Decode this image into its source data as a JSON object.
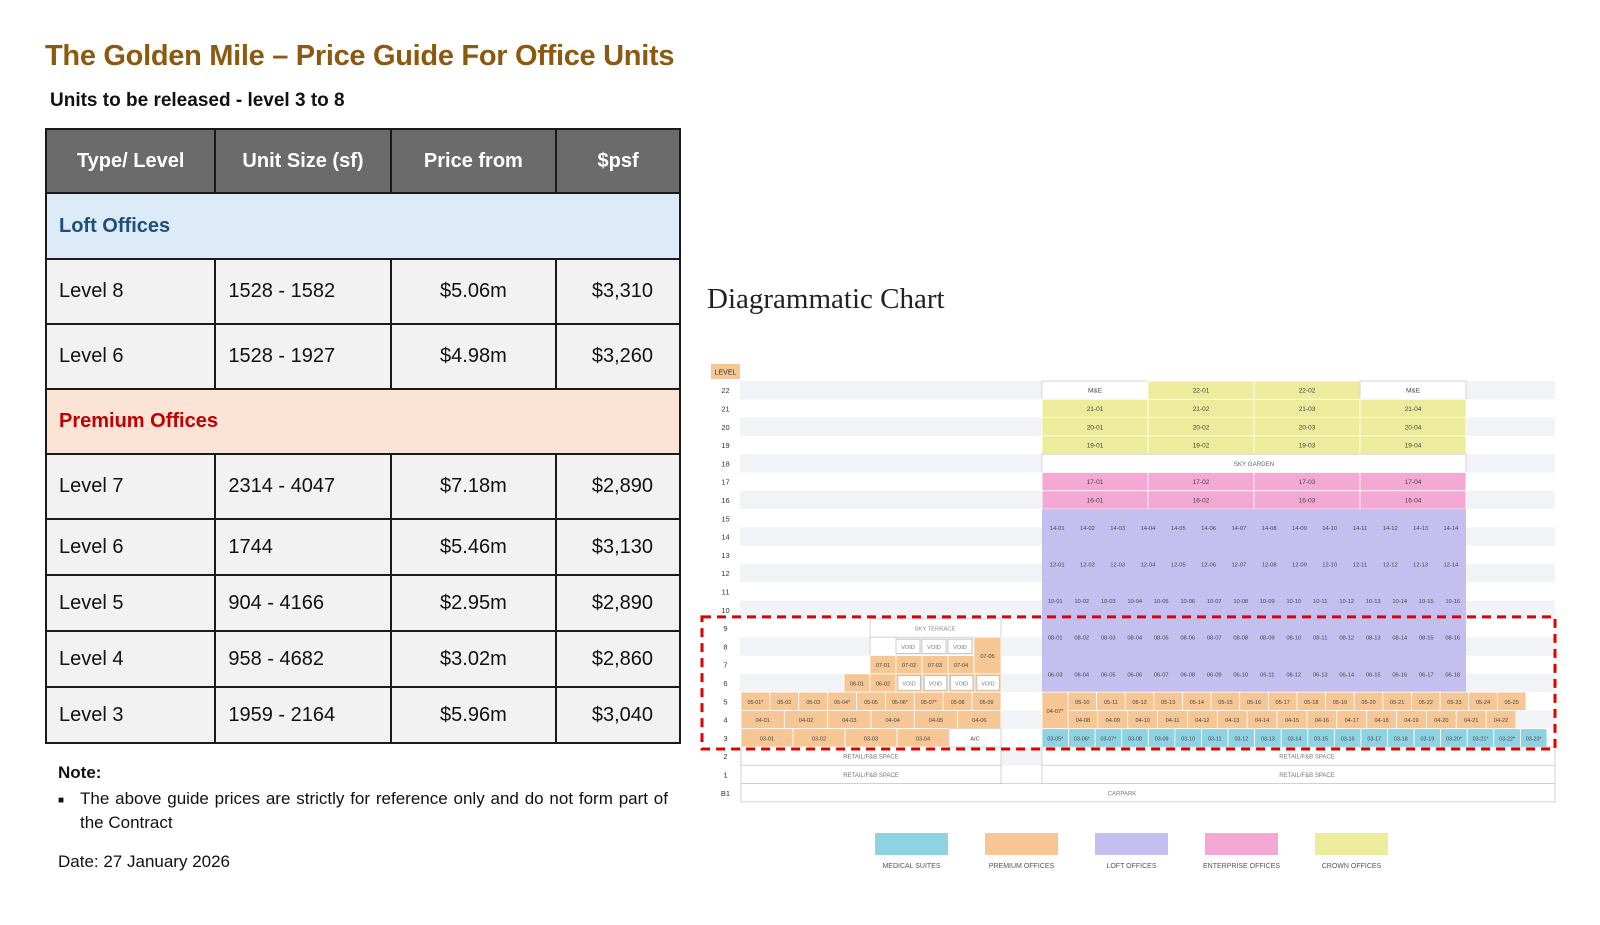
{
  "header": {
    "title": "The Golden Mile – Price Guide For Office Units",
    "subtitle": "Units to be released - level 3 to 8"
  },
  "price_table": {
    "columns": [
      "Type/ Level",
      "Unit Size (sf)",
      "Price from",
      "$psf"
    ],
    "sections": [
      {
        "name": "Loft Offices",
        "rows": [
          [
            "Level 8",
            "1528 - 1582",
            "$5.06m",
            "$3,310"
          ],
          [
            "Level 6",
            "1528 - 1927",
            "$4.98m",
            "$3,260"
          ]
        ]
      },
      {
        "name": "Premium Offices",
        "rows": [
          [
            "Level 7",
            "2314 - 4047",
            "$7.18m",
            "$2,890"
          ],
          [
            "Level 6",
            "1744",
            "$5.46m",
            "$3,130"
          ],
          [
            "Level 5",
            "904 - 4166",
            "$2.95m",
            "$2,890"
          ],
          [
            "Level 4",
            "958 - 4682",
            "$3.02m",
            "$2,860"
          ],
          [
            "Level 3",
            "1959 - 2164",
            "$5.96m",
            "$3,040"
          ]
        ]
      }
    ]
  },
  "note": {
    "heading": "Note:",
    "bullet": "The above guide prices are strictly for reference only and do not form part of the Contract",
    "date": "Date: 27 January 2026"
  },
  "diagram": {
    "title": "Diagrammatic Chart",
    "level_header": "LEVEL",
    "levels": [
      "22",
      "21",
      "20",
      "19",
      "18",
      "17",
      "16",
      "15",
      "14",
      "13",
      "12",
      "11",
      "10",
      "9",
      "8",
      "7",
      "6",
      "5",
      "4",
      "3",
      "2",
      "1",
      "B1"
    ],
    "labels": {
      "sky_garden": "SKY GARDEN",
      "sky_terrace": "SKY TERRACE",
      "retail": "RETAIL/F&B SPACE",
      "carpark": "CARPARK",
      "me": "M&E",
      "void": "VOID",
      "ac": "A/C"
    },
    "crown_units": {
      "22": [
        "M&E",
        "22-01",
        "22-02",
        "M&E"
      ],
      "21": [
        "21-01",
        "21-02",
        "21-03",
        "21-04"
      ],
      "20": [
        "20-01",
        "20-02",
        "20-03",
        "20-04"
      ],
      "19": [
        "19-01",
        "19-02",
        "19-03",
        "19-04"
      ]
    },
    "enterprise_units": {
      "17": [
        "17-01",
        "17-02",
        "17-03",
        "17-04"
      ],
      "16": [
        "16-01",
        "16-02",
        "16-03",
        "16-04"
      ]
    },
    "loft_rows": {
      "15": [
        "14-01",
        "14-02",
        "14-03",
        "14-04",
        "14-05",
        "14-06",
        "14-07",
        "14-08",
        "14-09",
        "14-10",
        "14-11",
        "14-12",
        "14-13",
        "14-14"
      ],
      "13": [
        "12-01",
        "12-02",
        "12-03",
        "12-04",
        "12-05",
        "12-06",
        "12-07",
        "12-08",
        "12-09",
        "12-10",
        "12-11",
        "12-12",
        "12-13",
        "12-14"
      ],
      "11": [
        "10-01",
        "10-02",
        "10-03",
        "10-04",
        "10-05",
        "10-06",
        "10-07",
        "10-08",
        "10-09",
        "10-10",
        "10-11",
        "10-12",
        "10-13",
        "10-14",
        "10-15",
        "10-16"
      ],
      "9": [
        "08-01",
        "08-02",
        "08-03",
        "08-04",
        "08-05",
        "08-06",
        "08-07",
        "08-08",
        "08-09",
        "08-10",
        "08-11",
        "08-12",
        "08-13",
        "08-14",
        "08-15",
        "08-16"
      ],
      "7": [
        "06-03",
        "06-04",
        "06-05",
        "06-06",
        "06-07",
        "06-08",
        "06-09",
        "06-10",
        "06-11",
        "06-12",
        "06-13",
        "06-14",
        "06-15",
        "06-16",
        "06-17",
        "06-18"
      ]
    },
    "right_premium": {
      "5": [
        "05-10",
        "05-11",
        "05-12",
        "05-13",
        "05-14",
        "05-15",
        "05-16",
        "05-17",
        "05-18",
        "05-19",
        "05-20",
        "05-21",
        "05-22",
        "05-23",
        "05-24",
        "05-25"
      ],
      "4": [
        "04-08",
        "04-09",
        "04-10",
        "04-11",
        "04-12",
        "04-13",
        "04-14",
        "04-15",
        "04-16",
        "04-17",
        "04-18",
        "04-19",
        "04-20",
        "04-21",
        "04-22"
      ],
      "merged": "04-07*"
    },
    "medical_units": [
      "03-05*",
      "03-06*",
      "03-07*",
      "03-08",
      "03-09",
      "03-10",
      "03-11",
      "03-12",
      "03-13",
      "03-14",
      "03-15",
      "03-16",
      "03-17",
      "03-18",
      "03-19",
      "03-20*",
      "03-21*",
      "03-22*",
      "03-23*"
    ],
    "left_block": {
      "l8": [
        "VOID",
        "VOID",
        "VOID"
      ],
      "l7": [
        "07-01",
        "07-02",
        "07-03",
        "07-04",
        "07-05"
      ],
      "l6": [
        "06-01",
        "06-02",
        "VOID",
        "VOID",
        "VOID",
        "VOID"
      ],
      "l5": [
        "05-01*",
        "05-02",
        "05-03",
        "05-04*",
        "05-05",
        "05-06*",
        "05-07*",
        "05-08",
        "05-09"
      ],
      "l4": [
        "04-01",
        "04-02",
        "04-03",
        "04-04",
        "04-05",
        "04-06"
      ],
      "l3": [
        "03-01",
        "03-02",
        "03-03",
        "03-04",
        "A/C"
      ]
    },
    "legend": [
      {
        "label": "MEDICAL SUITES",
        "color": "#8fd3e3"
      },
      {
        "label": "PREMIUM OFFICES",
        "color": "#f6c694"
      },
      {
        "label": "LOFT OFFICES",
        "color": "#c5bff0"
      },
      {
        "label": "ENTERPRISE OFFICES",
        "color": "#f3a9d3"
      },
      {
        "label": "CROWN OFFICES",
        "color": "#ecec9c"
      }
    ],
    "colors": {
      "medical": "#8fd3e3",
      "premium": "#f6c694",
      "loft": "#c5bff0",
      "enterprise": "#f3a9d3",
      "crown": "#ecec9c",
      "level_header": "#f6c694",
      "highlight": "#e00000"
    }
  }
}
